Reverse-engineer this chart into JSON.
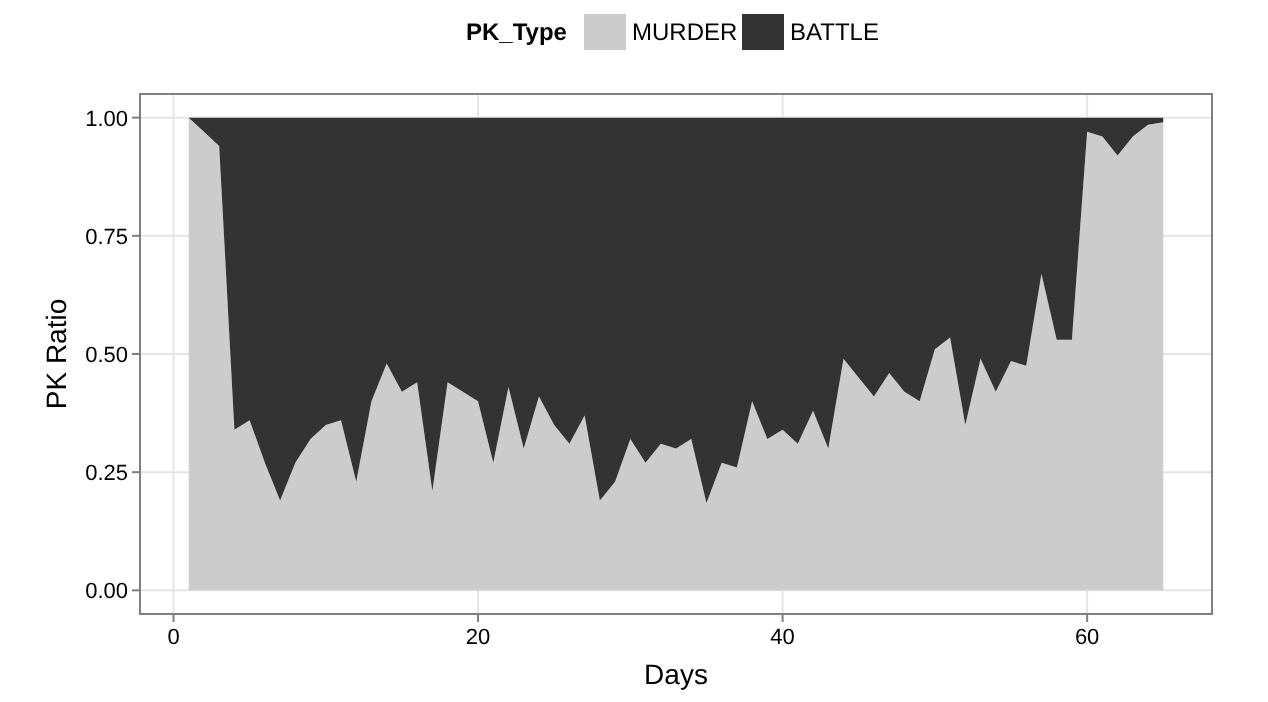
{
  "chart_data": {
    "type": "area",
    "stacked": true,
    "xlabel": "Days",
    "ylabel": "PK Ratio",
    "legend_title": "PK_Type",
    "legend": "top",
    "grid": true,
    "x": [
      1,
      2,
      3,
      4,
      5,
      6,
      7,
      8,
      9,
      10,
      11,
      12,
      13,
      14,
      15,
      16,
      17,
      18,
      19,
      20,
      21,
      22,
      23,
      24,
      25,
      26,
      27,
      28,
      29,
      30,
      31,
      32,
      33,
      34,
      35,
      36,
      37,
      38,
      39,
      40,
      41,
      42,
      43,
      44,
      45,
      46,
      47,
      48,
      49,
      50,
      51,
      52,
      53,
      54,
      55,
      56,
      57,
      58,
      59,
      60,
      61,
      62,
      63,
      64,
      65
    ],
    "xlim": [
      -2.2,
      68.2
    ],
    "xticks": [
      0,
      20,
      40,
      60
    ],
    "ylim": [
      -0.05,
      1.05
    ],
    "yticks": [
      {
        "value": 0,
        "label": "0.00"
      },
      {
        "value": 0.25,
        "label": "0.25"
      },
      {
        "value": 0.5,
        "label": "0.50"
      },
      {
        "value": 0.75,
        "label": "0.75"
      },
      {
        "value": 1,
        "label": "1.00"
      }
    ],
    "series": [
      {
        "name": "MURDER",
        "color": "#cccccc",
        "values": [
          1.0,
          0.97,
          0.94,
          0.34,
          0.36,
          0.27,
          0.19,
          0.27,
          0.32,
          0.35,
          0.36,
          0.23,
          0.4,
          0.48,
          0.42,
          0.44,
          0.21,
          0.44,
          0.42,
          0.4,
          0.27,
          0.43,
          0.3,
          0.41,
          0.35,
          0.31,
          0.37,
          0.19,
          0.23,
          0.32,
          0.27,
          0.31,
          0.3,
          0.32,
          0.185,
          0.27,
          0.26,
          0.4,
          0.32,
          0.34,
          0.31,
          0.38,
          0.3,
          0.49,
          0.45,
          0.41,
          0.46,
          0.42,
          0.4,
          0.51,
          0.535,
          0.35,
          0.49,
          0.42,
          0.485,
          0.475,
          0.67,
          0.53,
          0.53,
          0.97,
          0.96,
          0.92,
          0.96,
          0.985,
          0.99
        ]
      },
      {
        "name": "BATTLE",
        "color": "#333333",
        "values": [
          0,
          0.03,
          0.06,
          0.66,
          0.64,
          0.73,
          0.81,
          0.73,
          0.68,
          0.65,
          0.64,
          0.77,
          0.6,
          0.52,
          0.58,
          0.56,
          0.79,
          0.56,
          0.58,
          0.6,
          0.73,
          0.57,
          0.7,
          0.59,
          0.65,
          0.69,
          0.63,
          0.81,
          0.77,
          0.68,
          0.73,
          0.69,
          0.7,
          0.68,
          0.815,
          0.73,
          0.74,
          0.6,
          0.68,
          0.66,
          0.69,
          0.62,
          0.7,
          0.51,
          0.55,
          0.59,
          0.54,
          0.58,
          0.6,
          0.49,
          0.465,
          0.65,
          0.51,
          0.58,
          0.515,
          0.525,
          0.33,
          0.47,
          0.47,
          0.03,
          0.04,
          0.08,
          0.04,
          0.015,
          0.01
        ]
      }
    ]
  }
}
